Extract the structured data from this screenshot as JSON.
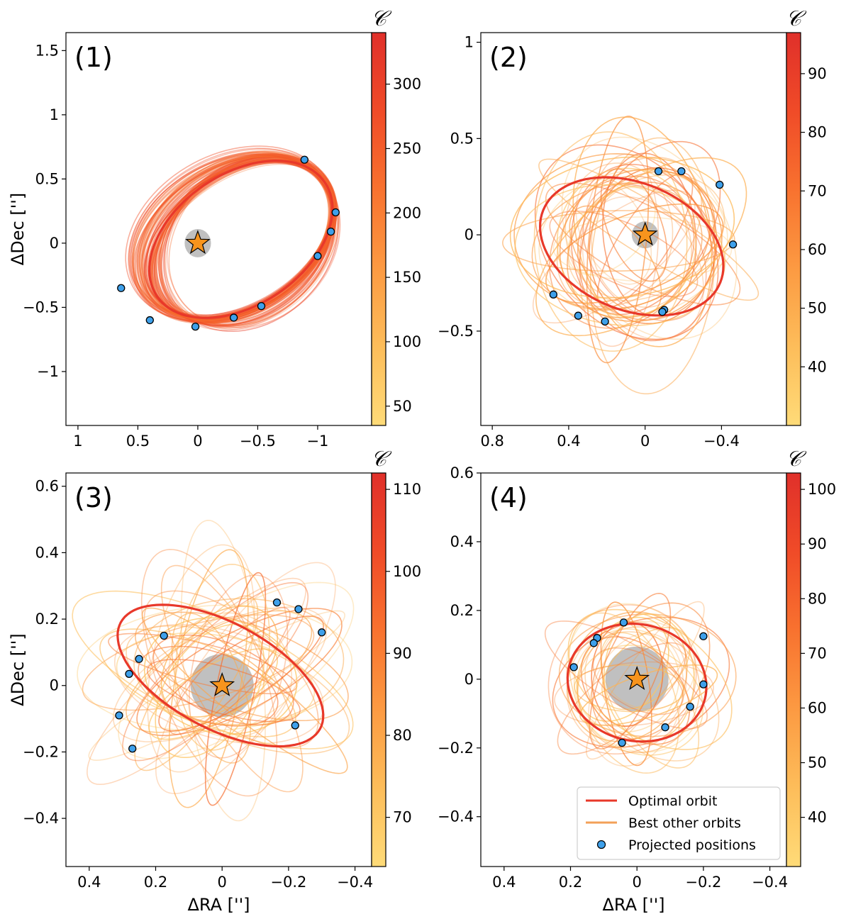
{
  "figure": {
    "colorbar_symbol": "𝒞"
  },
  "legend": {
    "optimal_label": "Optimal orbit",
    "other_label": "Best other orbits",
    "points_label": "Projected positions",
    "optimal_color": "#e8382a",
    "other_color": "#f3a058",
    "points_color": "#3ea0ea"
  },
  "colors": {
    "colormap": [
      "#fedb78",
      "#fdbd5a",
      "#fc9a42",
      "#f8722f",
      "#f04b28",
      "#e0302a"
    ],
    "star_fill": "#f7941d",
    "star_disk": "#c0c0c0"
  },
  "chart_data": [
    {
      "panel_label": "(1)",
      "type": "scatter",
      "xlabel": "",
      "ylabel": "ΔDec ['']",
      "xlim": [
        1.1,
        -1.45
      ],
      "ylim": [
        -1.42,
        1.64
      ],
      "xticks": [
        1,
        0.5,
        0,
        -0.5,
        -1
      ],
      "xtick_labels": [
        "1",
        "0.5",
        "0",
        "−0.5",
        "−1"
      ],
      "yticks": [
        -1,
        -0.5,
        0,
        0.5,
        1,
        1.5
      ],
      "ytick_labels": [
        "−1",
        "−0.5",
        "0",
        "0.5",
        "1",
        "1.5"
      ],
      "colorbar_range": [
        35,
        340
      ],
      "colorbar_ticks": [
        50,
        100,
        150,
        200,
        250,
        300
      ],
      "star_disk_radius": 0.11,
      "optimal_orbit": {
        "cx": -0.36,
        "cy": 0.03,
        "a": 0.83,
        "b": 0.52,
        "theta": -30
      },
      "other_orbits": {
        "count": 90,
        "mode": "fan",
        "spread": 0.08
      },
      "positions": [
        [
          0.64,
          -0.35
        ],
        [
          0.4,
          -0.6
        ],
        [
          0.02,
          -0.65
        ],
        [
          -0.3,
          -0.58
        ],
        [
          -0.53,
          -0.49
        ],
        [
          -1.0,
          -0.1
        ],
        [
          -1.11,
          0.09
        ],
        [
          -1.15,
          0.24
        ],
        [
          -0.89,
          0.65
        ]
      ]
    },
    {
      "panel_label": "(2)",
      "type": "scatter",
      "xlabel": "",
      "ylabel": "",
      "xlim": [
        0.86,
        -0.74
      ],
      "ylim": [
        -0.99,
        1.05
      ],
      "xticks": [
        0.8,
        0.4,
        0,
        -0.4
      ],
      "xtick_labels": [
        "0.8",
        "0.4",
        "0",
        "−0.4"
      ],
      "yticks": [
        -0.5,
        0,
        0.5,
        1
      ],
      "ytick_labels": [
        "−0.5",
        "0",
        "0.5",
        "1"
      ],
      "colorbar_range": [
        30,
        97
      ],
      "colorbar_ticks": [
        40,
        50,
        60,
        70,
        80,
        90
      ],
      "star_disk_radius": 0.07,
      "optimal_orbit": {
        "cx": 0.07,
        "cy": -0.06,
        "a": 0.5,
        "b": 0.33,
        "theta": 22
      },
      "other_orbits": {
        "count": 40,
        "mode": "random",
        "seed": 7
      },
      "positions": [
        [
          -0.07,
          0.33
        ],
        [
          -0.19,
          0.33
        ],
        [
          -0.39,
          0.26
        ],
        [
          -0.46,
          -0.05
        ],
        [
          -0.1,
          -0.39
        ],
        [
          -0.09,
          -0.4
        ],
        [
          0.21,
          -0.45
        ],
        [
          0.35,
          -0.42
        ],
        [
          0.48,
          -0.31
        ]
      ]
    },
    {
      "panel_label": "(3)",
      "type": "scatter",
      "xlabel": "ΔRA ['']",
      "ylabel": "ΔDec ['']",
      "xlim": [
        0.47,
        -0.45
      ],
      "ylim": [
        -0.545,
        0.64
      ],
      "xticks": [
        0.4,
        0.2,
        0,
        -0.2,
        -0.4
      ],
      "xtick_labels": [
        "0.4",
        "0.2",
        "0",
        "−0.2",
        "−0.4"
      ],
      "yticks": [
        -0.4,
        -0.2,
        0,
        0.2,
        0.4,
        0.6
      ],
      "ytick_labels": [
        "−0.4",
        "−0.2",
        "0",
        "0.2",
        "0.4",
        "0.6"
      ],
      "colorbar_range": [
        64,
        112
      ],
      "colorbar_ticks": [
        70,
        80,
        90,
        100,
        110
      ],
      "star_disk_radius": 0.095,
      "optimal_orbit": {
        "cx": 0.005,
        "cy": 0.03,
        "a": 0.34,
        "b": 0.16,
        "theta": 28
      },
      "other_orbits": {
        "count": 40,
        "mode": "random",
        "seed": 11
      },
      "positions": [
        [
          -0.165,
          0.25
        ],
        [
          -0.23,
          0.23
        ],
        [
          -0.3,
          0.16
        ],
        [
          -0.22,
          -0.12
        ],
        [
          0.27,
          -0.19
        ],
        [
          0.31,
          -0.09
        ],
        [
          0.28,
          0.035
        ],
        [
          0.25,
          0.08
        ],
        [
          0.175,
          0.15
        ]
      ]
    },
    {
      "panel_label": "(4)",
      "type": "scatter",
      "xlabel": "ΔRA ['']",
      "ylabel": "",
      "xlim": [
        0.47,
        -0.45
      ],
      "ylim": [
        -0.545,
        0.6
      ],
      "xticks": [
        0.4,
        0.2,
        0,
        -0.2,
        -0.4
      ],
      "xtick_labels": [
        "0.4",
        "0.2",
        "0",
        "−0.2",
        "−0.4"
      ],
      "yticks": [
        -0.4,
        -0.2,
        0,
        0.2,
        0.4,
        0.6
      ],
      "ytick_labels": [
        "−0.4",
        "−0.2",
        "0",
        "0.2",
        "0.4",
        "0.6"
      ],
      "colorbar_range": [
        31,
        103
      ],
      "colorbar_ticks": [
        40,
        50,
        60,
        70,
        80,
        90,
        100
      ],
      "star_disk_radius": 0.095,
      "optimal_orbit": {
        "cx": 0.0,
        "cy": -0.01,
        "a": 0.21,
        "b": 0.17,
        "theta": 10
      },
      "other_orbits": {
        "count": 30,
        "mode": "random",
        "seed": 23
      },
      "positions": [
        [
          0.04,
          0.165
        ],
        [
          0.12,
          0.12
        ],
        [
          0.13,
          0.105
        ],
        [
          0.19,
          0.035
        ],
        [
          -0.2,
          0.125
        ],
        [
          -0.2,
          -0.015
        ],
        [
          -0.16,
          -0.08
        ],
        [
          -0.085,
          -0.14
        ],
        [
          0.045,
          -0.185
        ]
      ]
    }
  ]
}
